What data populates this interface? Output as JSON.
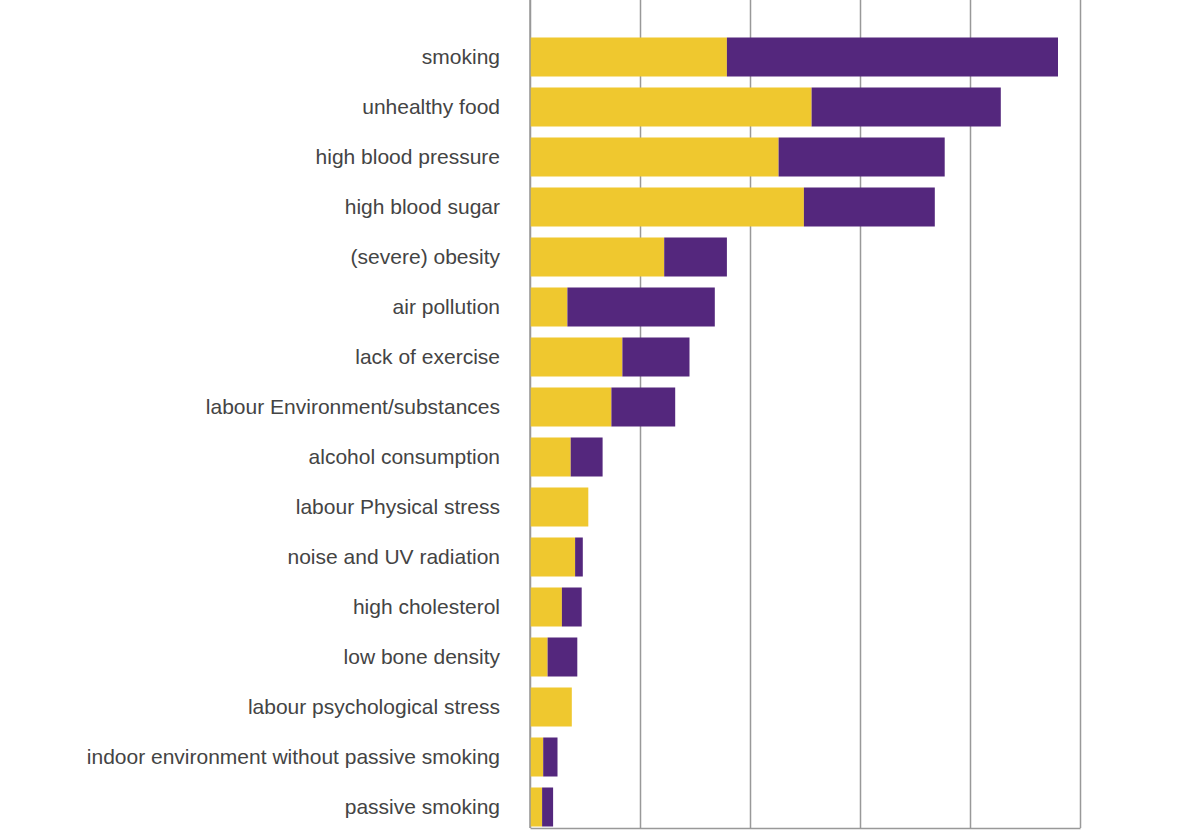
{
  "chart_data": {
    "type": "bar",
    "orientation": "horizontal",
    "stacked": true,
    "categories": [
      "smoking",
      "unhealthy food",
      "high blood pressure",
      "high blood sugar",
      "(severe) obesity",
      "air pollution",
      "lack of exercise",
      "labour Environment/substances",
      "alcohol consumption",
      "labour Physical stress",
      "noise and UV radiation",
      "high cholesterol",
      "low bone density",
      "labour psychological stress",
      "indoor environment without passive smoking",
      "passive smoking"
    ],
    "series": [
      {
        "color": "#efc82f",
        "values": [
          89.5,
          128,
          113,
          124.5,
          61,
          17,
          42,
          37,
          18.5,
          26.5,
          20.5,
          14.5,
          8,
          19,
          6,
          5.5
        ]
      },
      {
        "color": "#54277d",
        "values": [
          150.5,
          86,
          75.5,
          59.5,
          28.5,
          67,
          30.5,
          29,
          14.5,
          0,
          3.5,
          9,
          13.5,
          0,
          6.5,
          5
        ]
      }
    ],
    "xlim": [
      0,
      250
    ],
    "xticks": [
      0,
      50,
      100,
      150,
      200,
      250
    ],
    "grid": true,
    "tick_labels": "y"
  }
}
